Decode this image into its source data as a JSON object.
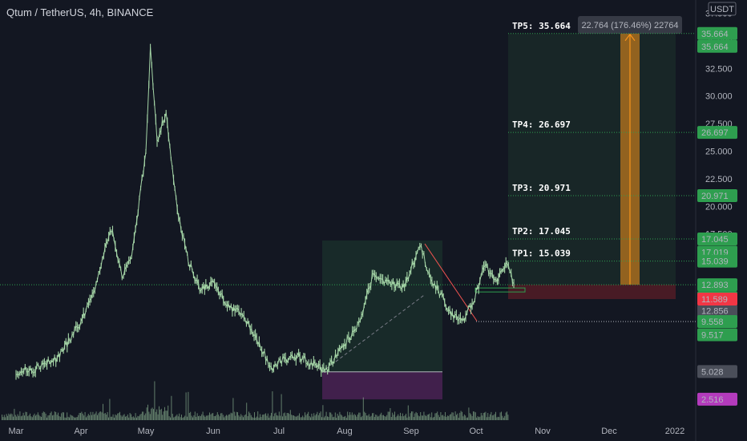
{
  "header": {
    "title": "Qtum / TetherUS, 4h, BINANCE"
  },
  "currency": "USDT",
  "colors": {
    "background": "#131722",
    "candle": "#a5d6a7",
    "tp_green": "#2e9e4f",
    "red": "#f23645",
    "purple": "#b43bbd",
    "orange": "#f7931a",
    "gray": "#4a4e59"
  },
  "chart_data": {
    "type": "line",
    "x_labels": [
      "Mar",
      "Apr",
      "May",
      "Jun",
      "Jul",
      "Aug",
      "Sep",
      "Oct",
      "Nov",
      "Dec",
      "2022"
    ],
    "y_ticks": [
      "37.500",
      "35.000",
      "32.500",
      "30.000",
      "27.500",
      "25.000",
      "22.500",
      "20.000",
      "17.500"
    ],
    "price_series": [
      [
        "Mar",
        5.0
      ],
      [
        "Mar 10",
        5.3
      ],
      [
        "Mar 20",
        6.2
      ],
      [
        "Apr",
        9.5
      ],
      [
        "Apr 8",
        13.0
      ],
      [
        "Apr 15",
        18.0
      ],
      [
        "Apr 20",
        13.5
      ],
      [
        "Apr 25",
        16.0
      ],
      [
        "May",
        25.0
      ],
      [
        "May 3",
        34.5
      ],
      [
        "May 6",
        26.0
      ],
      [
        "May 10",
        28.5
      ],
      [
        "May 15",
        19.5
      ],
      [
        "May 20",
        15.0
      ],
      [
        "May 25",
        12.5
      ],
      [
        "Jun",
        13.0
      ],
      [
        "Jun 8",
        11.0
      ],
      [
        "Jun 15",
        10.0
      ],
      [
        "Jun 22",
        7.5
      ],
      [
        "Jun 28",
        5.2
      ],
      [
        "Jul",
        6.0
      ],
      [
        "Jul 10",
        6.4
      ],
      [
        "Jul 18",
        5.5
      ],
      [
        "Jul 22",
        5.0
      ],
      [
        "Aug",
        7.5
      ],
      [
        "Aug 8",
        9.5
      ],
      [
        "Aug 14",
        14.0
      ],
      [
        "Aug 20",
        13.0
      ],
      [
        "Aug 28",
        12.8
      ],
      [
        "Sep 5",
        16.5
      ],
      [
        "Sep 10",
        13.5
      ],
      [
        "Sep 20",
        10.2
      ],
      [
        "Sep 25",
        9.6
      ],
      [
        "Oct",
        12.0
      ],
      [
        "Oct 5",
        14.8
      ],
      [
        "Oct 10",
        13.2
      ],
      [
        "Oct 15",
        15.0
      ],
      [
        "Oct 18",
        13.0
      ]
    ],
    "annotations": {
      "take_profits": [
        {
          "label": "TP5: 35.664",
          "value": 35.664
        },
        {
          "label": "TP4: 26.697",
          "value": 26.697
        },
        {
          "label": "TP3: 20.971",
          "value": 20.971
        },
        {
          "label": "TP2: 17.045",
          "value": 17.045
        },
        {
          "label": "TP1: 15.039",
          "value": 15.039
        }
      ],
      "measure_tooltip": "22.764 (176.46%) 22764",
      "entry": 12.893,
      "stop": 11.589
    },
    "price_labels": [
      {
        "text": "35.664",
        "value": 35.664,
        "color": "#2e9e4f"
      },
      {
        "text": "35.664",
        "value": 35.664,
        "color": "#2e9e4f",
        "offset": 1
      },
      {
        "text": "26.697",
        "value": 26.697,
        "color": "#2e9e4f"
      },
      {
        "text": "20.971",
        "value": 20.971,
        "color": "#2e9e4f"
      },
      {
        "text": "17.045",
        "value": 17.045,
        "color": "#2e9e4f"
      },
      {
        "text": "17.019",
        "value": 17.019,
        "color": "#2e9e4f",
        "offset": 1
      },
      {
        "text": "15.039",
        "value": 15.039,
        "color": "#2e9e4f"
      },
      {
        "text": "12.893",
        "value": 12.893,
        "color": "#2e9e4f"
      },
      {
        "text": "01:36:33",
        "value": 12.893,
        "color": "#2e9e4f",
        "offset": 1
      },
      {
        "text": "12.856",
        "value": 12.856,
        "color": "#4a4e59",
        "offset": 2
      },
      {
        "text": "11.589",
        "value": 11.589,
        "color": "#f23645"
      },
      {
        "text": "9.558",
        "value": 9.558,
        "color": "#2e9e4f"
      },
      {
        "text": "9.517",
        "value": 9.517,
        "color": "#2e9e4f",
        "offset": 1
      },
      {
        "text": "5.028",
        "value": 5.028,
        "color": "#4a4e59"
      },
      {
        "text": "2.516",
        "value": 2.516,
        "color": "#b43bbd"
      }
    ]
  }
}
